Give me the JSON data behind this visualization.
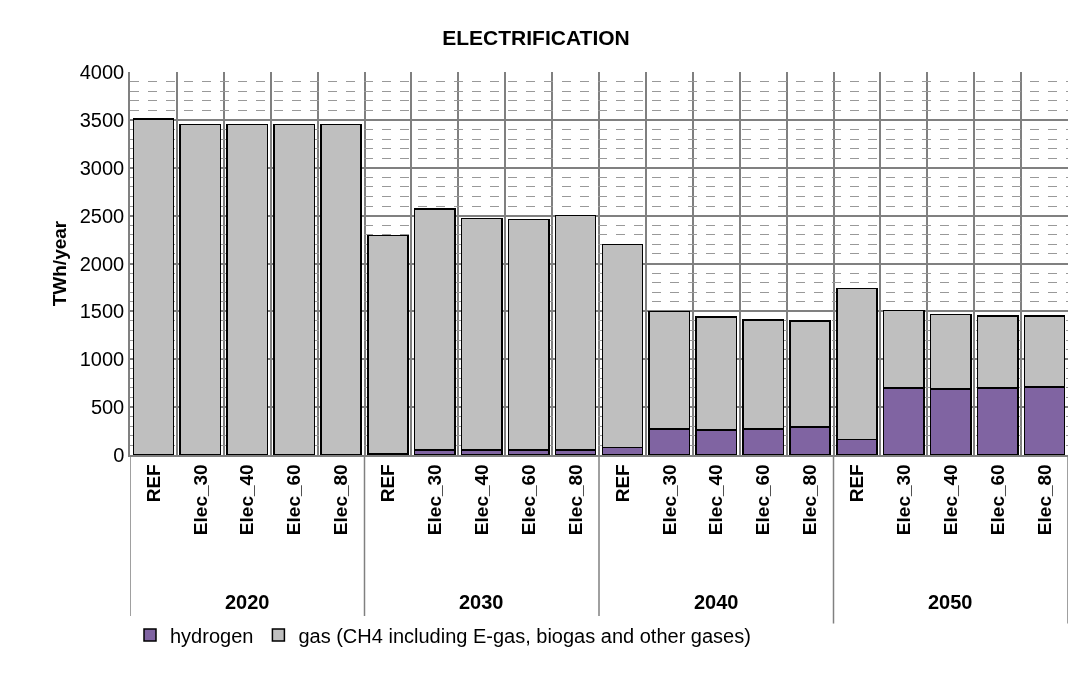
{
  "chart_data": {
    "type": "bar",
    "title": "ELECTRIFICATION",
    "ylabel": "TWh/year",
    "stacked": true,
    "categories": [
      "REF",
      "Elec_30",
      "Elec_40",
      "Elec_60",
      "Elec_80",
      "REF",
      "Elec_30",
      "Elec_40",
      "Elec_60",
      "Elec_80",
      "REF",
      "Elec_30",
      "Elec_40",
      "Elec_60",
      "Elec_80",
      "REF",
      "Elec_30",
      "Elec_40",
      "Elec_60",
      "Elec_80"
    ],
    "series": [
      {
        "name": "hydrogen",
        "color": "#8064a2",
        "values": [
          0,
          0,
          0,
          0,
          0,
          10,
          50,
          50,
          50,
          50,
          80,
          270,
          260,
          270,
          290,
          160,
          700,
          690,
          700,
          710
        ]
      },
      {
        "name": "gas (CH4 including E-gas, biogas and other gases)",
        "color": "#bfbfbf",
        "values": [
          3510,
          3450,
          3450,
          3450,
          3450,
          2280,
          2520,
          2420,
          2410,
          2450,
          2120,
          1230,
          1180,
          1140,
          1110,
          1580,
          810,
          780,
          750,
          740
        ]
      }
    ],
    "ylim": [
      0,
      4000
    ],
    "yticks": [
      0,
      500,
      1000,
      1500,
      2000,
      2500,
      3000,
      3500,
      4000
    ],
    "grid": true,
    "legend": "bottom",
    "annotations": [
      "2020",
      "2030",
      "2040",
      "2050"
    ]
  }
}
